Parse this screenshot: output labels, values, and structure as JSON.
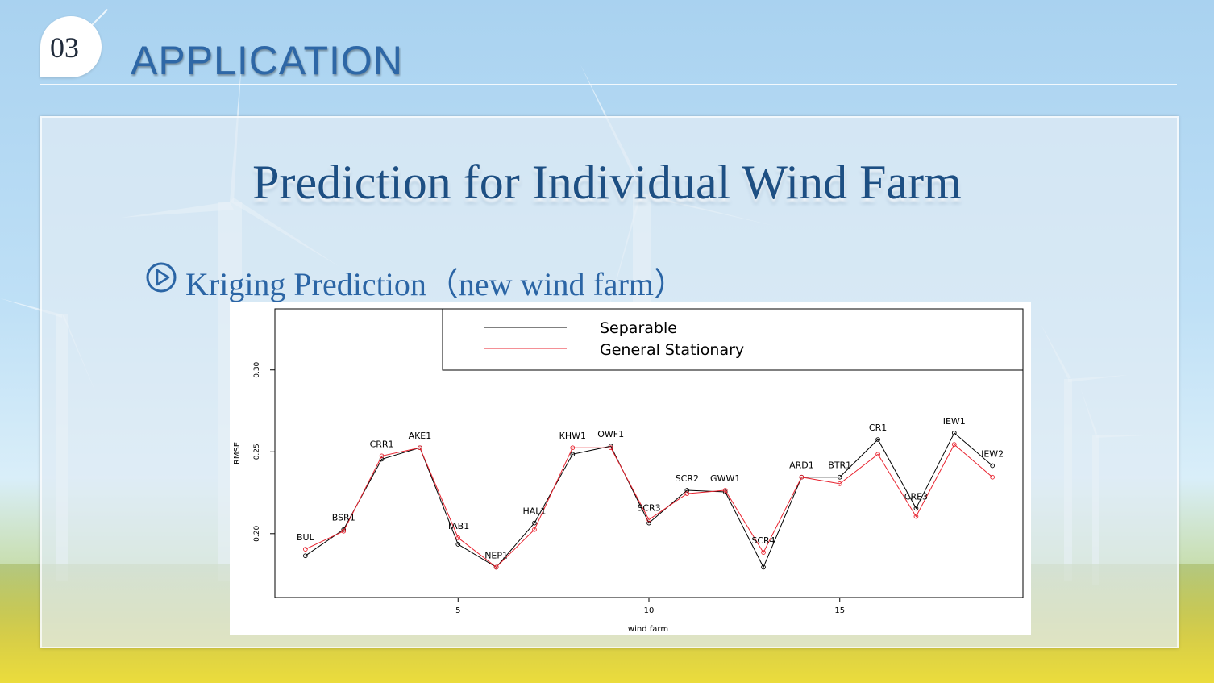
{
  "header": {
    "section_number": "03",
    "section_title": "APPLICATION"
  },
  "slide": {
    "title": "Prediction for Individual Wind Farm",
    "subtitle": "Kriging Prediction（new wind farm）",
    "subtitle_icon": "play-circle-icon"
  },
  "colors": {
    "title": "#1d4f83",
    "section_title": "#2e67a6",
    "series_separable": "#000000",
    "series_general": "#e8222e"
  },
  "chart_data": {
    "type": "line",
    "xlabel": "wind farm",
    "ylabel": "RMSE",
    "xlim": [
      0.2,
      19.8
    ],
    "ylim": [
      0.161,
      0.3373
    ],
    "x_ticks": [
      5,
      10,
      15
    ],
    "y_ticks": [
      0.2,
      0.25,
      0.3
    ],
    "y_tick_labels": [
      "0.20",
      "0.25",
      "0.30"
    ],
    "legend": {
      "placement": "top-right",
      "entries": [
        "Separable",
        "General Stationary"
      ]
    },
    "x": [
      1,
      2,
      3,
      4,
      5,
      6,
      7,
      8,
      9,
      10,
      11,
      12,
      13,
      14,
      15,
      16,
      17,
      18,
      19
    ],
    "point_labels": [
      "BUL",
      "BSR1",
      "CRR1",
      "AKE1",
      "TAB1",
      "NEP1",
      "HAL1",
      "KHW1",
      "OWF1",
      "SCR3",
      "SCR2",
      "GWW1",
      "SCR4",
      "ARD1",
      "BTR1",
      "CR1",
      "CRE3",
      "IEW1",
      "IEW2"
    ],
    "series": [
      {
        "name": "Separable",
        "color": "#000000",
        "values": [
          0.1865,
          0.2025,
          0.2455,
          0.2525,
          0.1935,
          0.1795,
          0.2065,
          0.2485,
          0.2535,
          0.2065,
          0.2265,
          0.2255,
          0.1795,
          0.2345,
          0.2345,
          0.2575,
          0.2155,
          0.2615,
          0.2415
        ]
      },
      {
        "name": "General Stationary",
        "color": "#e8222e",
        "values": [
          0.1905,
          0.2015,
          0.2475,
          0.2525,
          0.1975,
          0.1795,
          0.2025,
          0.2525,
          0.2525,
          0.2085,
          0.2245,
          0.2265,
          0.1885,
          0.2345,
          0.2305,
          0.2485,
          0.2105,
          0.2545,
          0.2345
        ]
      }
    ]
  }
}
